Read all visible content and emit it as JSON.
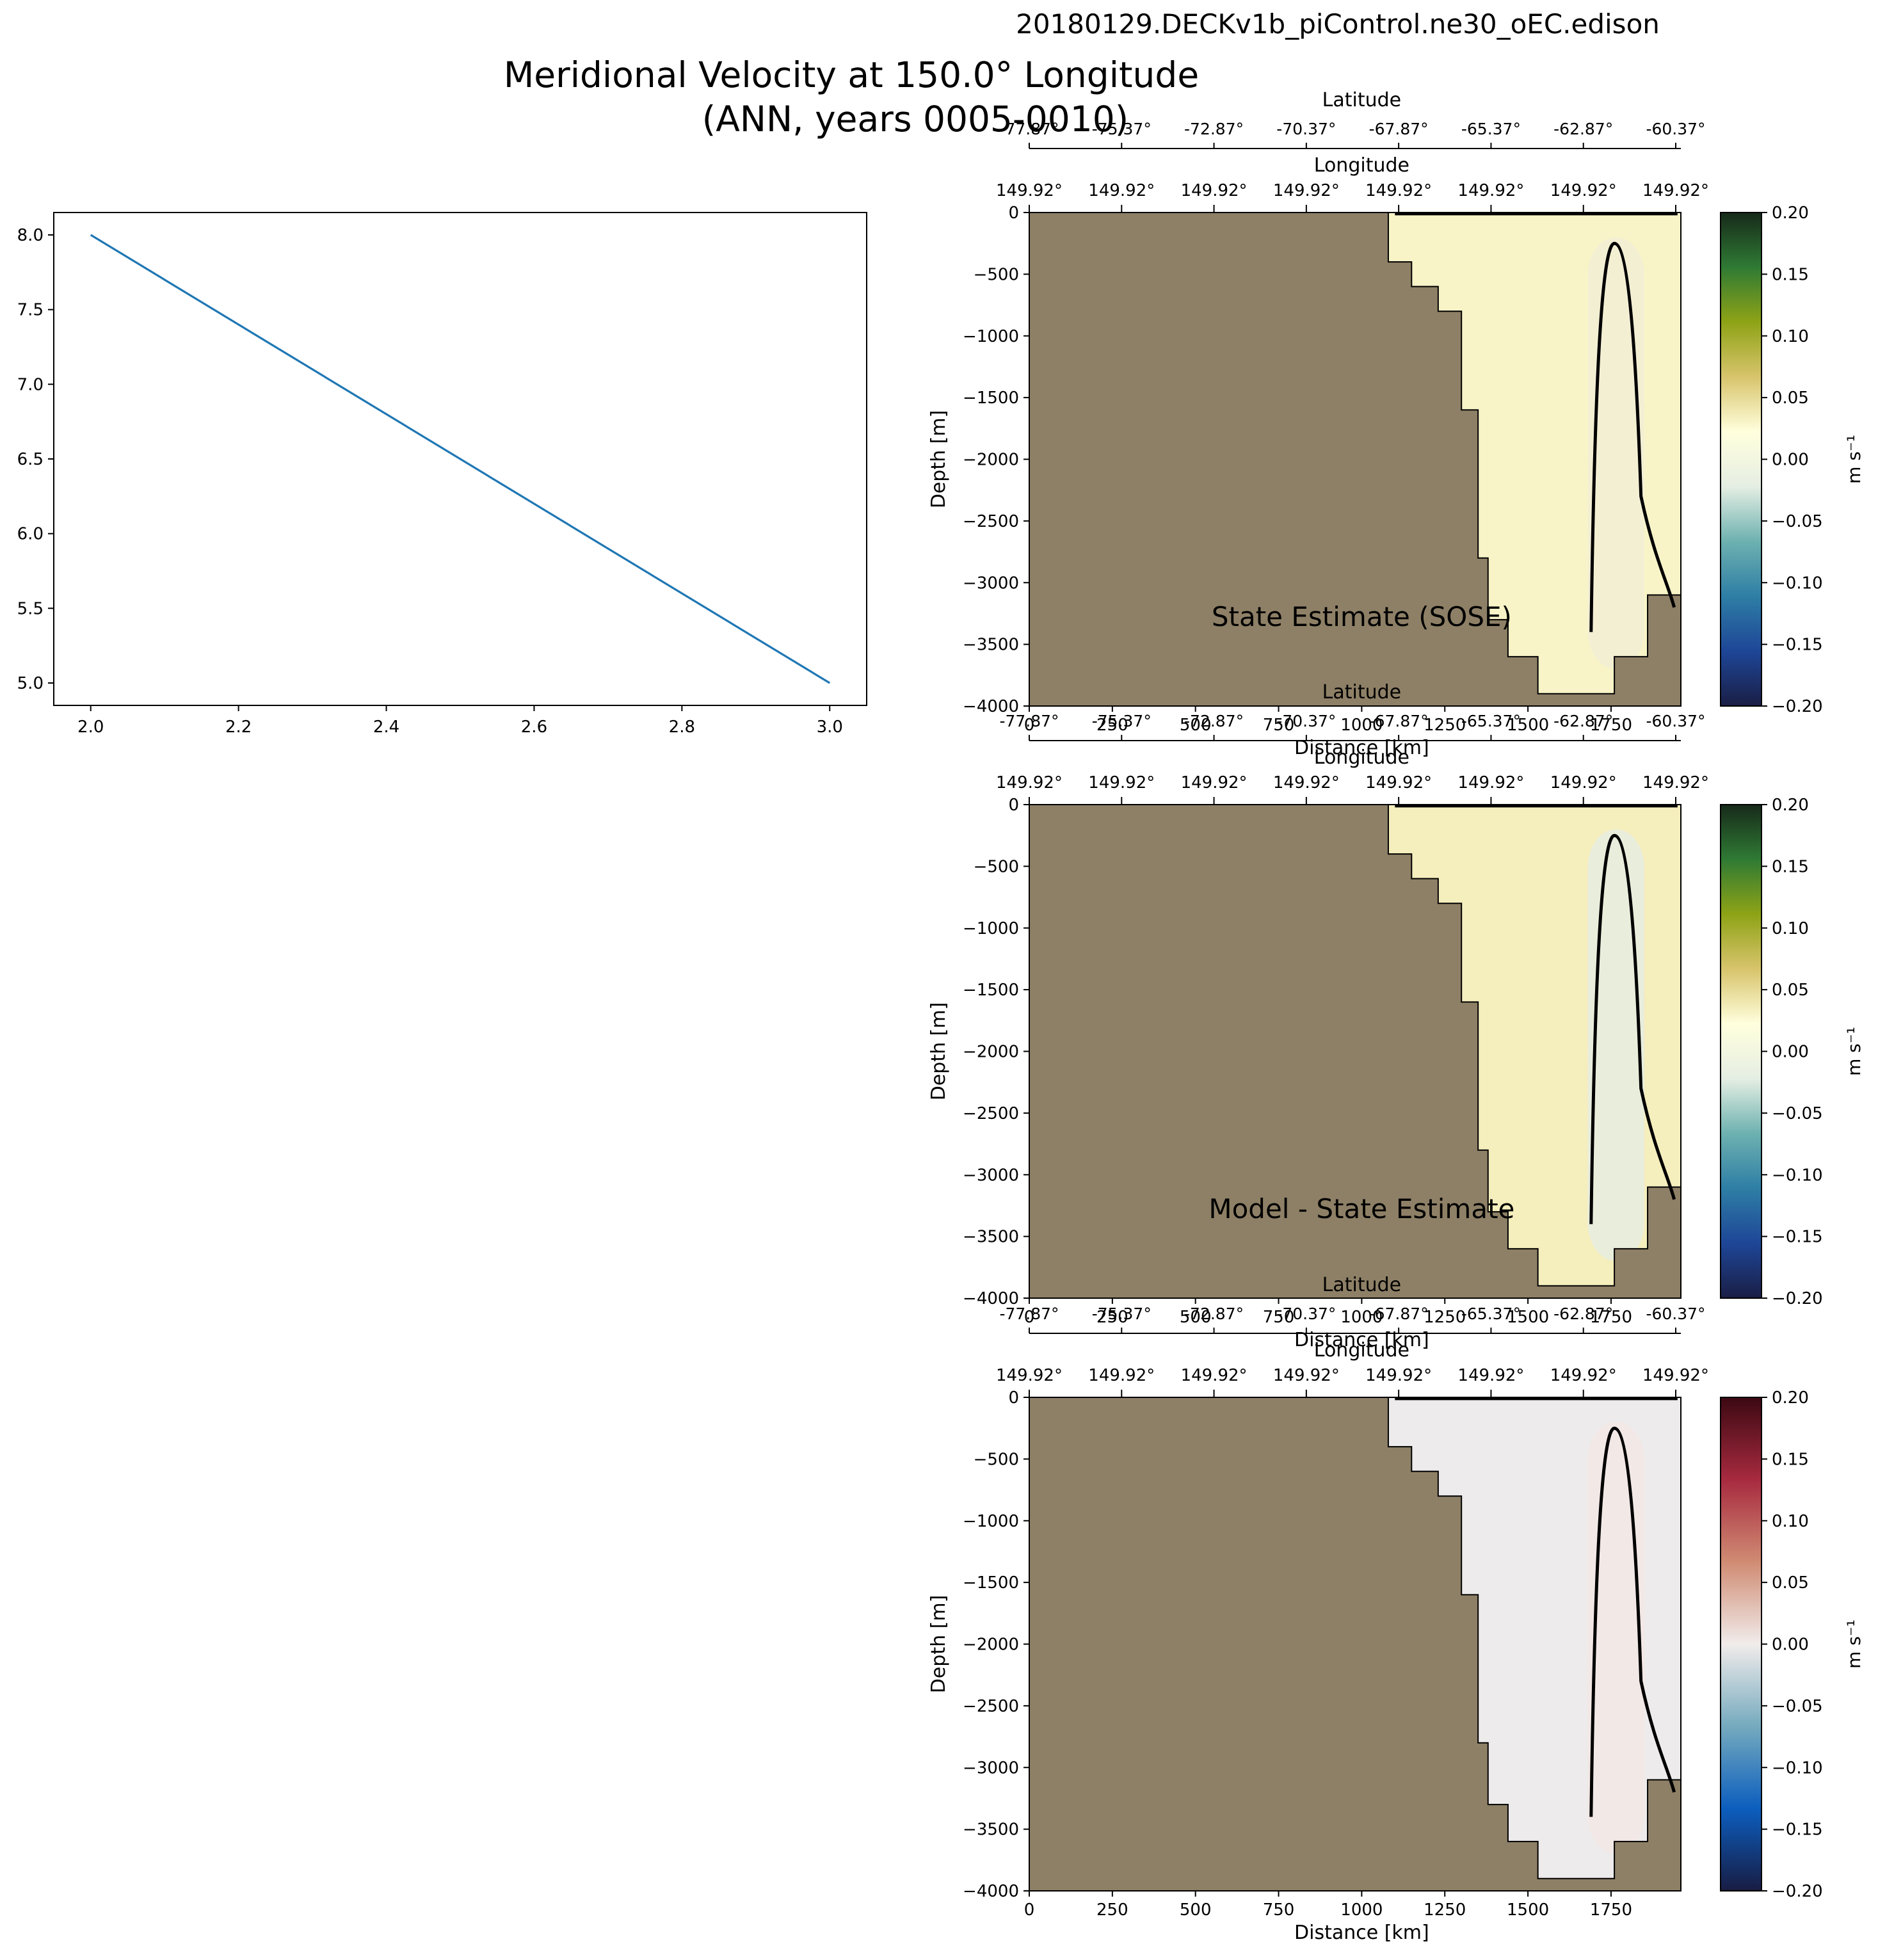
{
  "figure": {
    "run_name": "20180129.DECKv1b_piControl.ne30_oEC.edison",
    "title_line1": "Meridional Velocity at 150.0° Longitude",
    "title_line2": "(ANN, years 0005-0010)",
    "land_color": "#8e8066"
  },
  "chart_data": [
    {
      "type": "line",
      "title": "",
      "x": [
        2.0,
        3.0
      ],
      "y": [
        8.0,
        5.0
      ],
      "xlim": [
        1.95,
        3.05
      ],
      "ylim": [
        4.85,
        8.15
      ],
      "xticks": [
        "2.0",
        "2.2",
        "2.4",
        "2.6",
        "2.8",
        "3.0"
      ],
      "yticks": [
        "5.0",
        "5.5",
        "6.0",
        "6.5",
        "7.0",
        "7.5",
        "8.0"
      ],
      "color": "#1f77b4",
      "xlabel": "",
      "ylabel": ""
    },
    {
      "type": "heatmap",
      "label": "State Estimate (SOSE)",
      "ylabel": "Depth [m]",
      "ylim": [
        -4000,
        0
      ],
      "xlim": [
        0,
        1960
      ],
      "yticks": [
        "0",
        "−500",
        "−1000",
        "−1500",
        "−2000",
        "−2500",
        "−3000",
        "−3500",
        "−4000"
      ],
      "xticks": [
        "0",
        "250",
        "500",
        "750",
        "1000",
        "1250",
        "1500",
        "1750"
      ],
      "xlabel": "Distance [km]",
      "lat_label": "Latitude",
      "lat_ticks": [
        "-77.87°",
        "-75.37°",
        "-72.87°",
        "-70.37°",
        "-67.87°",
        "-65.37°",
        "-62.87°",
        "-60.37°"
      ],
      "lon_label": "Longitude",
      "lon_ticks": [
        "149.92°",
        "149.92°",
        "149.92°",
        "149.92°",
        "149.92°",
        "149.92°",
        "149.92°",
        "149.92°"
      ],
      "colorbar": {
        "label": "m s⁻¹",
        "range": [
          -0.2,
          0.2
        ],
        "ticks": [
          "0.20",
          "0.15",
          "0.10",
          "0.05",
          "0.00",
          "−0.05",
          "−0.10",
          "−0.15",
          "−0.20"
        ],
        "colormap": "delta",
        "stops": [
          "#1a1e45",
          "#1e4697",
          "#2e7ea5",
          "#6db1b0",
          "#e5eee3",
          "#ffffdd",
          "#d8c46c",
          "#8ea316",
          "#2f7a34",
          "#172a1a"
        ]
      }
    },
    {
      "type": "heatmap",
      "label": "Model - State Estimate",
      "ylabel": "Depth [m]",
      "ylim": [
        -4000,
        0
      ],
      "xlim": [
        0,
        1960
      ],
      "yticks": [
        "0",
        "−500",
        "−1000",
        "−1500",
        "−2000",
        "−2500",
        "−3000",
        "−3500",
        "−4000"
      ],
      "xticks": [
        "0",
        "250",
        "500",
        "750",
        "1000",
        "1250",
        "1500",
        "1750"
      ],
      "xlabel": "Distance [km]",
      "lat_label": "Latitude",
      "lat_ticks": [
        "-77.87°",
        "-75.37°",
        "-72.87°",
        "-70.37°",
        "-67.87°",
        "-65.37°",
        "-62.87°",
        "-60.37°"
      ],
      "lon_label": "Longitude",
      "lon_ticks": [
        "149.92°",
        "149.92°",
        "149.92°",
        "149.92°",
        "149.92°",
        "149.92°",
        "149.92°",
        "149.92°"
      ],
      "colorbar": {
        "label": "m s⁻¹",
        "range": [
          -0.2,
          0.2
        ],
        "ticks": [
          "0.20",
          "0.15",
          "0.10",
          "0.05",
          "0.00",
          "−0.05",
          "−0.10",
          "−0.15",
          "−0.20"
        ],
        "colormap": "delta",
        "stops": [
          "#1a1e45",
          "#1e4697",
          "#2e7ea5",
          "#6db1b0",
          "#e5eee3",
          "#ffffdd",
          "#d8c46c",
          "#8ea316",
          "#2f7a34",
          "#172a1a"
        ]
      }
    },
    {
      "type": "heatmap",
      "label": "",
      "ylabel": "Depth [m]",
      "ylim": [
        -4000,
        0
      ],
      "xlim": [
        0,
        1960
      ],
      "yticks": [
        "0",
        "−500",
        "−1000",
        "−1500",
        "−2000",
        "−2500",
        "−3000",
        "−3500",
        "−4000"
      ],
      "xticks": [
        "0",
        "250",
        "500",
        "750",
        "1000",
        "1250",
        "1500",
        "1750"
      ],
      "xlabel": "Distance [km]",
      "lat_label": "Latitude",
      "lat_ticks": [
        "-77.87°",
        "-75.37°",
        "-72.87°",
        "-70.37°",
        "-67.87°",
        "-65.37°",
        "-62.87°",
        "-60.37°"
      ],
      "lon_label": "Longitude",
      "lon_ticks": [
        "149.92°",
        "149.92°",
        "149.92°",
        "149.92°",
        "149.92°",
        "149.92°",
        "149.92°",
        "149.92°"
      ],
      "colorbar": {
        "label": "m s⁻¹",
        "range": [
          -0.2,
          0.2
        ],
        "ticks": [
          "0.20",
          "0.15",
          "0.10",
          "0.05",
          "0.00",
          "−0.05",
          "−0.10",
          "−0.15",
          "−0.20"
        ],
        "colormap": "balance",
        "stops": [
          "#181c43",
          "#0c5ebe",
          "#75aabe",
          "#f1eceb",
          "#d08b73",
          "#a72a3f",
          "#3c0912"
        ]
      }
    }
  ]
}
